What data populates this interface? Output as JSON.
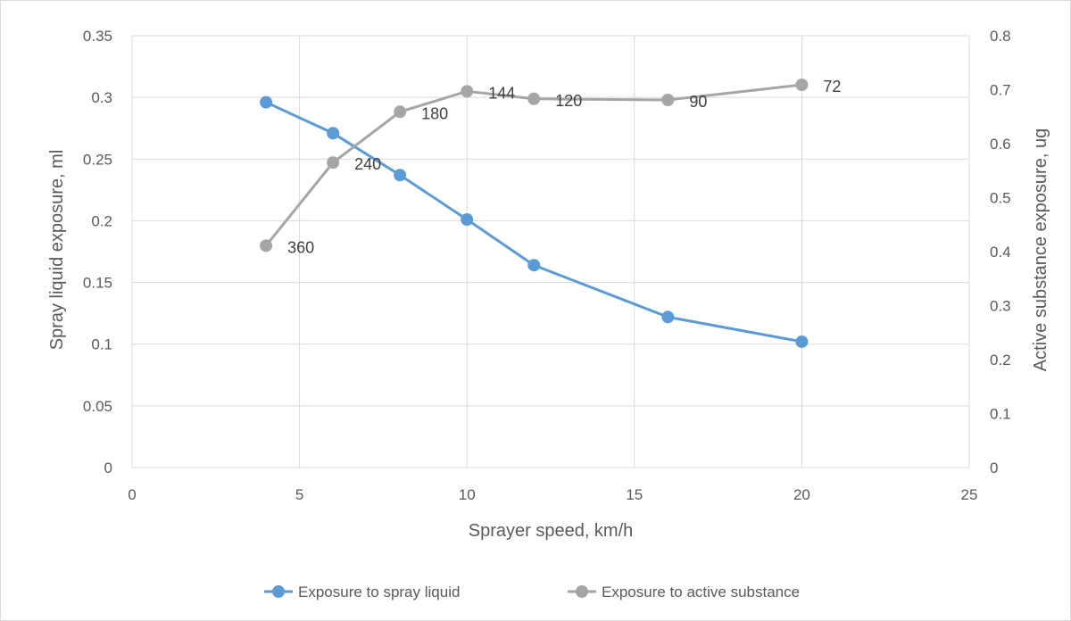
{
  "chart_data": {
    "type": "line",
    "title": "",
    "xlabel": "Sprayer speed, km/h",
    "ylabel": "Spray liquid exposure, ml",
    "y2label": "Active substance exposure, ug",
    "xlim": [
      0,
      25
    ],
    "ylim": [
      0,
      0.35
    ],
    "y2lim": [
      0,
      0.8
    ],
    "x_ticks": [
      "0",
      "5",
      "10",
      "15",
      "20",
      "25"
    ],
    "y_ticks": [
      "0",
      "0.05",
      "0.1",
      "0.15",
      "0.2",
      "0.25",
      "0.3",
      "0.35"
    ],
    "y2_ticks": [
      "0",
      "0.1",
      "0.2",
      "0.3",
      "0.4",
      "0.5",
      "0.6",
      "0.7",
      "0.8"
    ],
    "grid": true,
    "legend_position": "bottom",
    "series": [
      {
        "name": "Exposure to spray liquid",
        "axis": "left",
        "color": "#5b9bd5",
        "x": [
          4,
          6,
          8,
          10,
          12,
          16,
          20
        ],
        "values": [
          0.296,
          0.271,
          0.237,
          0.201,
          0.164,
          0.122,
          0.102
        ]
      },
      {
        "name": "Exposure to active substance",
        "axis": "right",
        "color": "#a5a5a5",
        "x": [
          4,
          6,
          8,
          10,
          12,
          16,
          20
        ],
        "values": [
          0.411,
          0.565,
          0.659,
          0.697,
          0.683,
          0.681,
          0.709
        ],
        "data_labels": [
          "360",
          "240",
          "180",
          "144",
          "120",
          "90",
          "72"
        ]
      }
    ]
  }
}
